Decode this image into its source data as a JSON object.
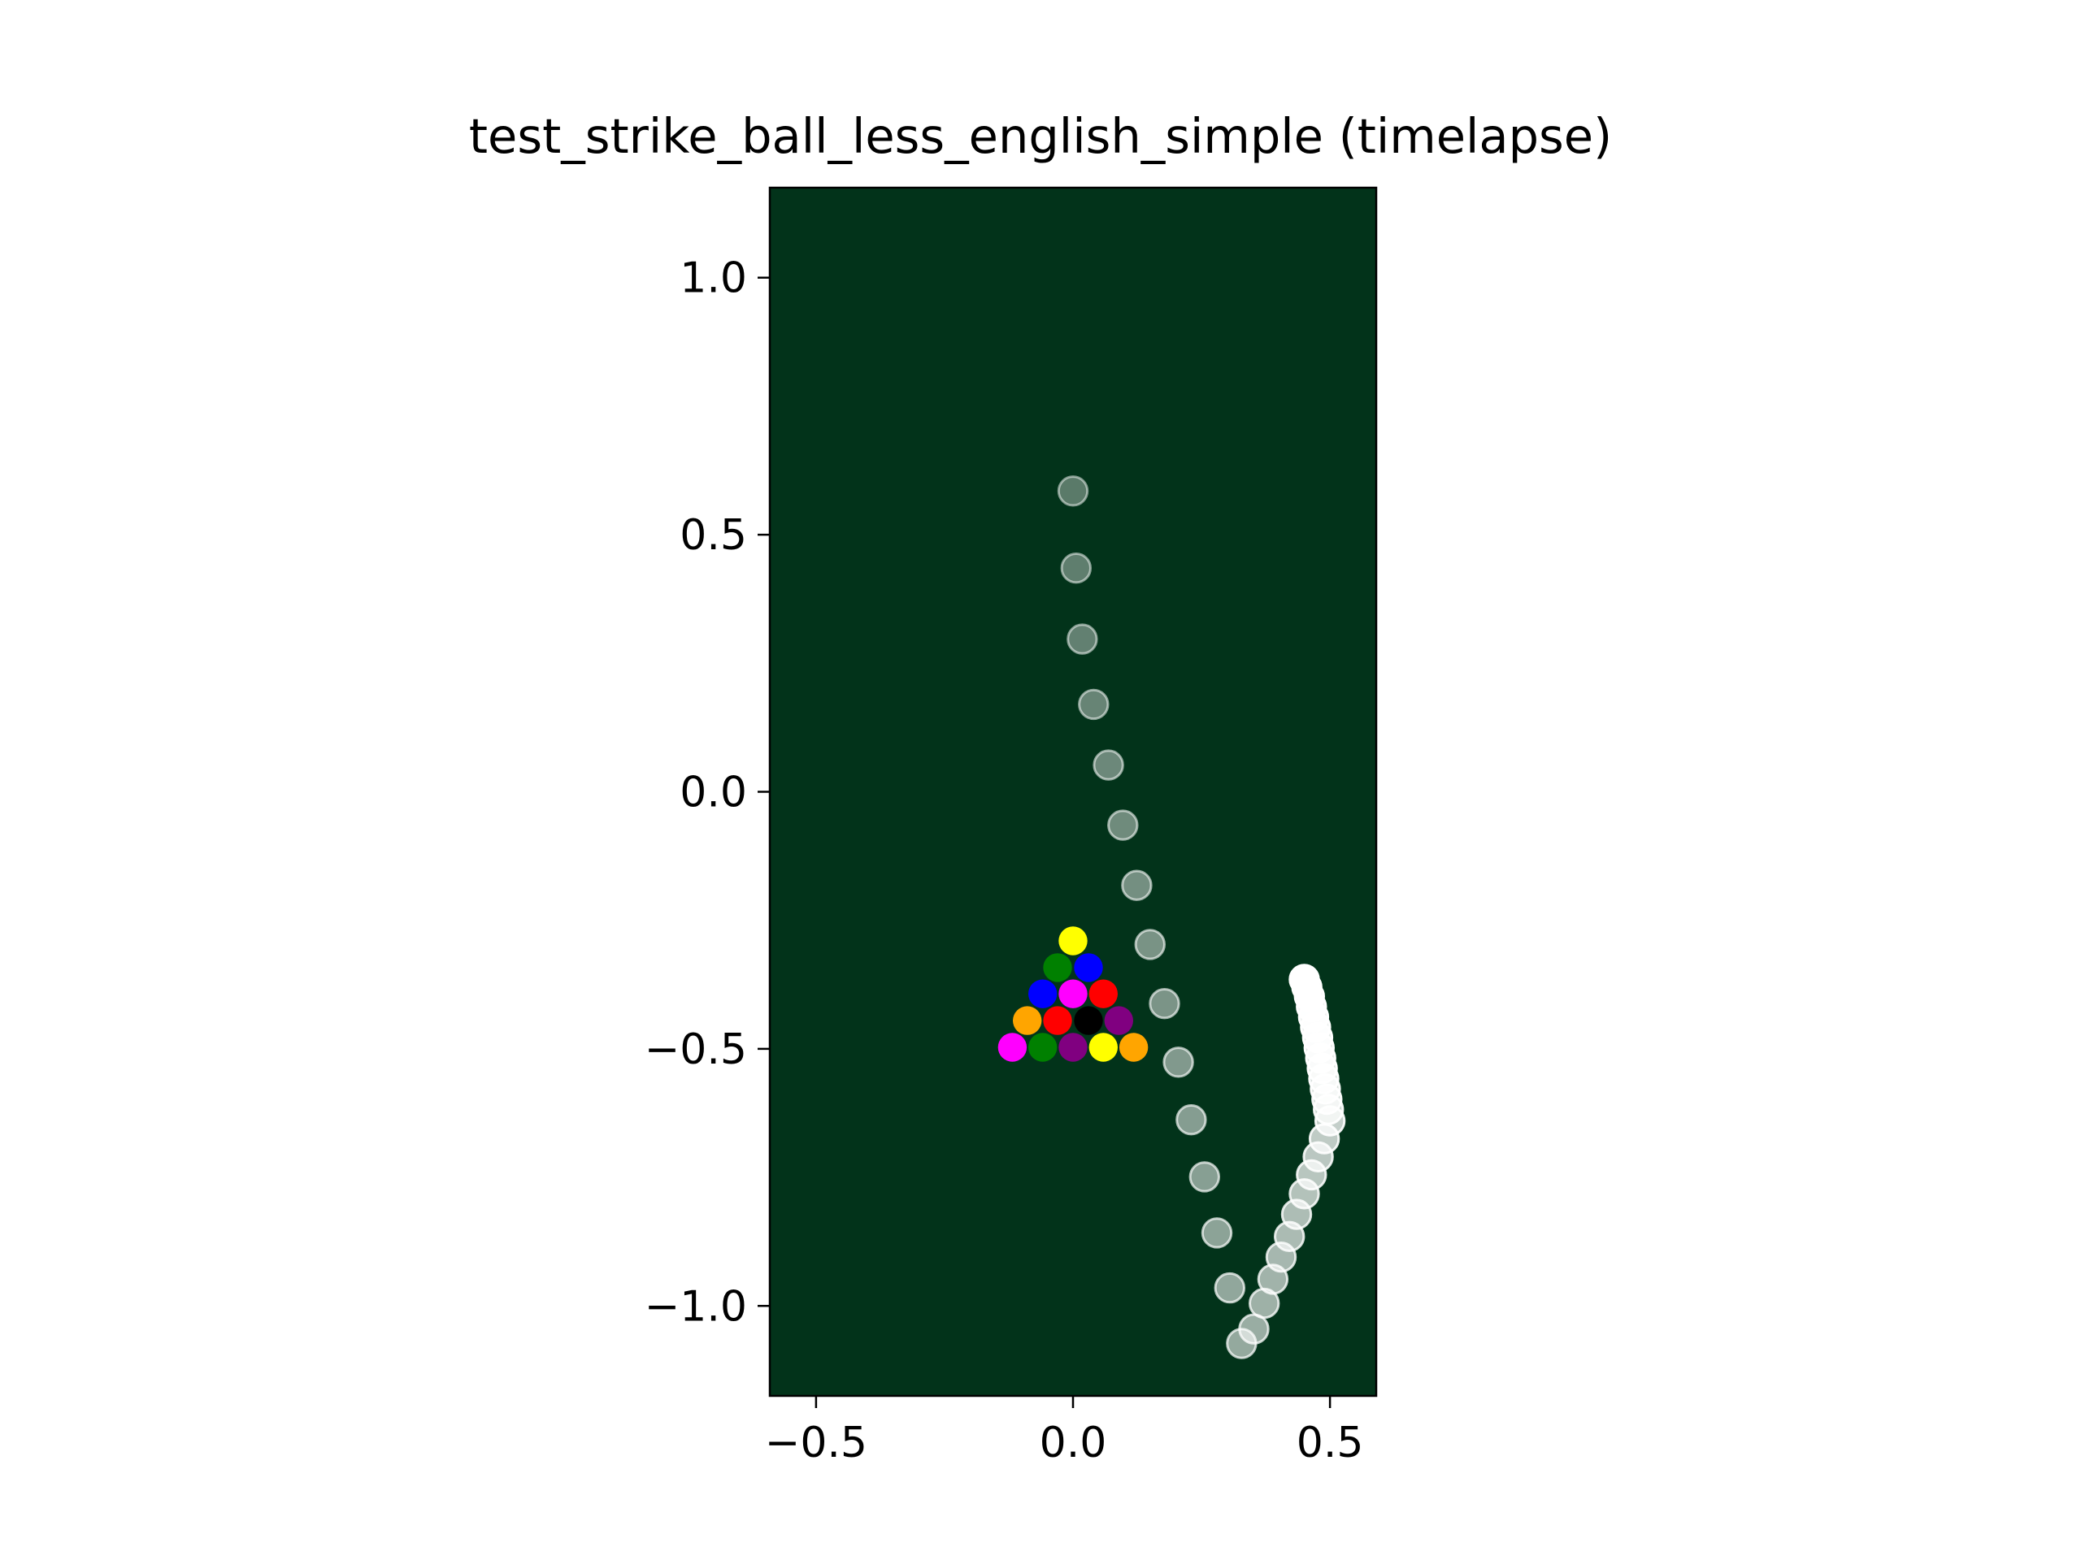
{
  "chart_data": {
    "type": "scatter",
    "title": "test_strike_ball_less_english_simple (timelapse)",
    "xlabel": "",
    "ylabel": "",
    "xlim": [
      -0.59,
      0.59
    ],
    "ylim": [
      -1.175,
      1.175
    ],
    "xticks": [
      -0.5,
      0.0,
      0.5
    ],
    "yticks": [
      -1.0,
      -0.5,
      0.0,
      0.5,
      1.0
    ],
    "xtick_labels": [
      "−0.5",
      "0.0",
      "0.5"
    ],
    "ytick_labels": [
      "−1.0",
      "−0.5",
      "0.0",
      "0.5",
      "1.0"
    ],
    "grid": false,
    "background_color": "#02331a",
    "ball_radius": 0.028,
    "cue_ball_path": {
      "color": "#ffffff",
      "points": [
        [
          0.0,
          0.585
        ],
        [
          0.006,
          0.435
        ],
        [
          0.018,
          0.297
        ],
        [
          0.04,
          0.17
        ],
        [
          0.069,
          0.052
        ],
        [
          0.097,
          -0.065
        ],
        [
          0.124,
          -0.182
        ],
        [
          0.15,
          -0.297
        ],
        [
          0.178,
          -0.412
        ],
        [
          0.205,
          -0.526
        ],
        [
          0.23,
          -0.638
        ],
        [
          0.256,
          -0.749
        ],
        [
          0.28,
          -0.858
        ],
        [
          0.305,
          -0.965
        ],
        [
          0.328,
          -1.073
        ],
        [
          0.352,
          -1.045
        ],
        [
          0.372,
          -0.995
        ],
        [
          0.389,
          -0.948
        ],
        [
          0.405,
          -0.905
        ],
        [
          0.421,
          -0.865
        ],
        [
          0.435,
          -0.822
        ],
        [
          0.45,
          -0.782
        ],
        [
          0.464,
          -0.745
        ],
        [
          0.477,
          -0.71
        ],
        [
          0.489,
          -0.675
        ],
        [
          0.5,
          -0.64
        ],
        [
          0.497,
          -0.618
        ],
        [
          0.494,
          -0.598
        ],
        [
          0.491,
          -0.578
        ],
        [
          0.488,
          -0.558
        ],
        [
          0.485,
          -0.538
        ],
        [
          0.482,
          -0.518
        ],
        [
          0.479,
          -0.498
        ],
        [
          0.476,
          -0.478
        ],
        [
          0.472,
          -0.458
        ],
        [
          0.468,
          -0.438
        ],
        [
          0.464,
          -0.418
        ],
        [
          0.46,
          -0.398
        ],
        [
          0.455,
          -0.38
        ],
        [
          0.45,
          -0.365
        ]
      ]
    },
    "rack_balls": [
      {
        "x": 0.0,
        "y": -0.29,
        "color": "#ffff00"
      },
      {
        "x": -0.03,
        "y": -0.342,
        "color": "#008000"
      },
      {
        "x": 0.03,
        "y": -0.342,
        "color": "#0000ff"
      },
      {
        "x": -0.059,
        "y": -0.393,
        "color": "#0000ff"
      },
      {
        "x": 0.0,
        "y": -0.393,
        "color": "#ff00ff"
      },
      {
        "x": 0.059,
        "y": -0.393,
        "color": "#ff0000"
      },
      {
        "x": -0.089,
        "y": -0.445,
        "color": "#ffa500"
      },
      {
        "x": -0.03,
        "y": -0.445,
        "color": "#ff0000"
      },
      {
        "x": 0.03,
        "y": -0.445,
        "color": "#000000"
      },
      {
        "x": 0.089,
        "y": -0.445,
        "color": "#800080"
      },
      {
        "x": -0.118,
        "y": -0.497,
        "color": "#ff00ff"
      },
      {
        "x": -0.059,
        "y": -0.497,
        "color": "#008000"
      },
      {
        "x": 0.0,
        "y": -0.497,
        "color": "#800080"
      },
      {
        "x": 0.059,
        "y": -0.497,
        "color": "#ffff00"
      },
      {
        "x": 0.118,
        "y": -0.497,
        "color": "#ffa500"
      }
    ]
  }
}
